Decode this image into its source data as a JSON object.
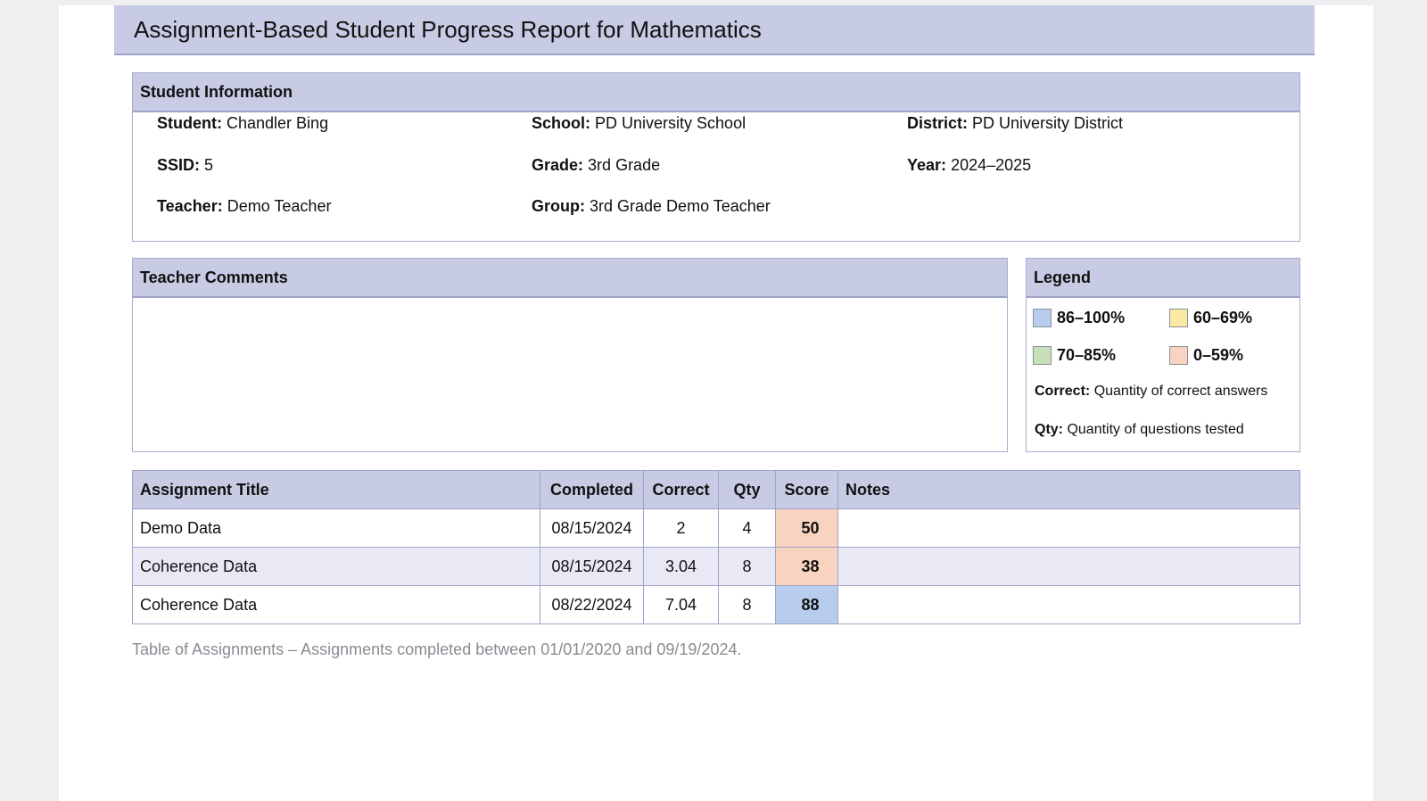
{
  "title": "Assignment-Based Student Progress Report for Mathematics",
  "student_info": {
    "header": "Student Information",
    "fields": [
      {
        "label": "Student:",
        "value": "Chandler Bing"
      },
      {
        "label": "School:",
        "value": "PD University School"
      },
      {
        "label": "District:",
        "value": "PD University District"
      },
      {
        "label": "SSID:",
        "value": "5"
      },
      {
        "label": "Grade:",
        "value": "3rd Grade"
      },
      {
        "label": "Year:",
        "value": "2024–2025"
      },
      {
        "label": "Teacher:",
        "value": "Demo Teacher"
      },
      {
        "label": "Group:",
        "value": "3rd Grade Demo Teacher"
      }
    ]
  },
  "comments": {
    "header": "Teacher Comments"
  },
  "legend": {
    "header": "Legend",
    "ranges": [
      {
        "label": "86–100%",
        "color": "#b8cdee"
      },
      {
        "label": "60–69%",
        "color": "#fbeaa3"
      },
      {
        "label": "70–85%",
        "color": "#c8e0b8"
      },
      {
        "label": "0–59%",
        "color": "#f8d3c0"
      }
    ],
    "notes": [
      {
        "term": "Correct:",
        "desc": "Quantity of correct answers"
      },
      {
        "term": "Qty:",
        "desc": "Quantity of questions tested"
      }
    ]
  },
  "table": {
    "headers": [
      "Assignment Title",
      "Completed",
      "Correct",
      "Qty",
      "Score",
      "Notes"
    ],
    "rows": [
      {
        "title": "Demo Data",
        "completed": "08/15/2024",
        "correct": "2",
        "qty": "4",
        "score": "50",
        "score_color": "#f8d3c0",
        "notes": ""
      },
      {
        "title": "Coherence Data",
        "completed": "08/15/2024",
        "correct": "3.04",
        "qty": "8",
        "score": "38",
        "score_color": "#f8d3c0",
        "notes": ""
      },
      {
        "title": "Coherence Data",
        "completed": "08/22/2024",
        "correct": "7.04",
        "qty": "8",
        "score": "88",
        "score_color": "#b8cdee",
        "notes": ""
      }
    ],
    "caption": "Table of Assignments – Assignments completed between 01/01/2020 and 09/19/2024."
  }
}
